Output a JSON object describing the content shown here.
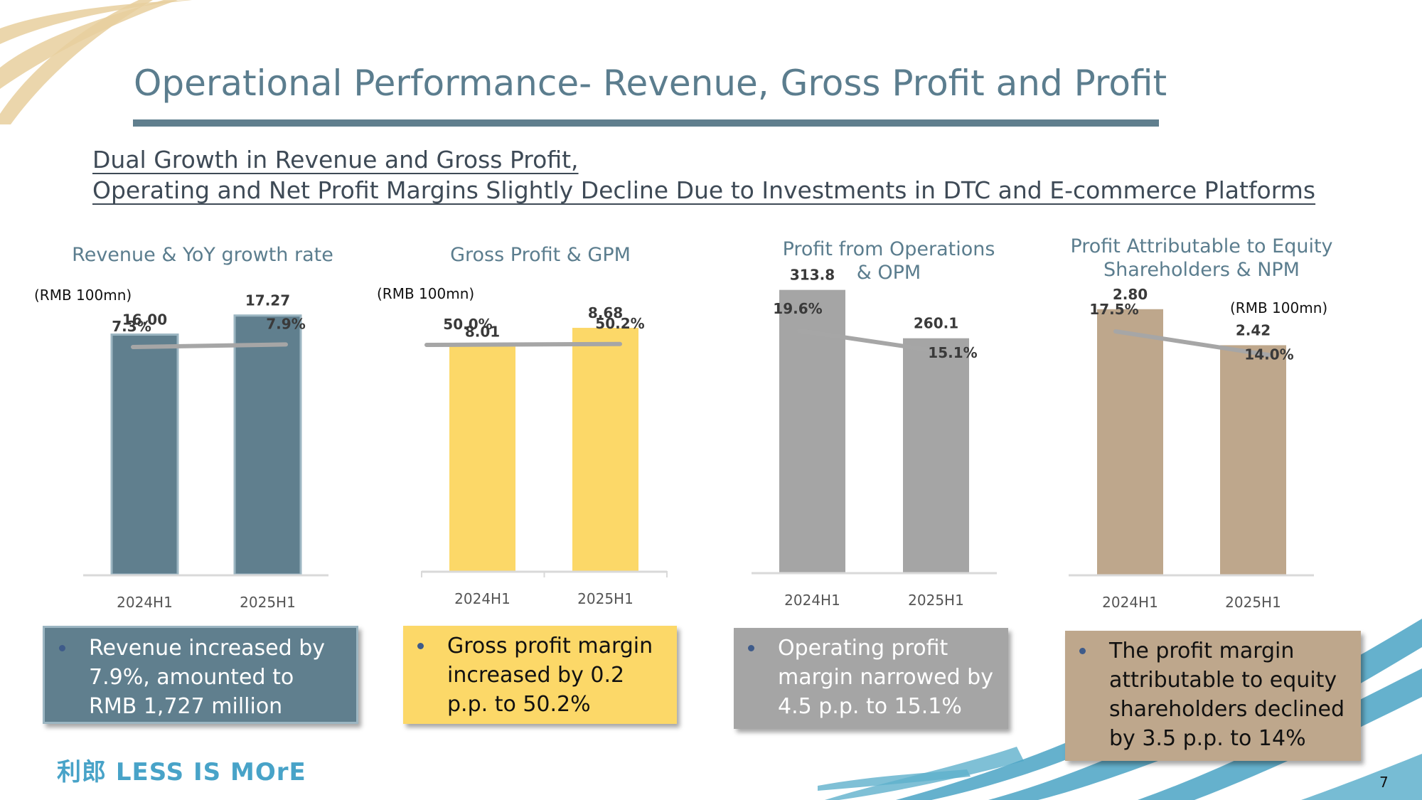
{
  "slide": {
    "title": "Operational Performance- Revenue, Gross Profit and Profit",
    "subtitle_line1": "Dual Growth in Revenue and Gross Profit,",
    "subtitle_line2": "Operating and Net Profit Margins Slightly Decline Due to Investments in DTC and E-commerce Platforms",
    "page_number": "7",
    "logo_text": "利郎 LESS IS MOrE"
  },
  "colors": {
    "title": "#5b7d8e",
    "revenue_bar": "#607f8e",
    "revenue_bar_border": "#9cb6c2",
    "gross_bar": "#fcd868",
    "operations_bar": "#a5a5a5",
    "net_bar": "#bea78c",
    "trend_line": "#a6a6a6",
    "axis": "#d9d9d9",
    "logo": "#48a3c8"
  },
  "notes": {
    "revenue": "Revenue increased by 7.9%, amounted to RMB 1,727 million",
    "gross": "Gross profit margin increased by 0.2 p.p. to 50.2%",
    "operations": "Operating profit margin narrowed by 4.5 p.p. to 15.1%",
    "net": "The profit margin attributable to equity shareholders declined by 3.5 p.p. to 14%"
  },
  "chart_data": [
    {
      "type": "bar",
      "id": "revenue",
      "title": "Revenue & YoY growth rate",
      "unit_label": "(RMB 100mn)",
      "categories": [
        "2024H1",
        "2025H1"
      ],
      "values": [
        16.0,
        17.27
      ],
      "value_labels": [
        "16.00",
        "17.27"
      ],
      "line_series": {
        "name": "YoY growth rate",
        "values": [
          7.3,
          7.9
        ],
        "labels": [
          "7.3%",
          "7.9%"
        ]
      },
      "xlabel": "",
      "ylabel": "",
      "grid": false
    },
    {
      "type": "bar",
      "id": "gross",
      "title": "Gross Profit & GPM",
      "unit_label": "(RMB 100mn)",
      "categories": [
        "2024H1",
        "2025H1"
      ],
      "values": [
        8.01,
        8.68
      ],
      "value_labels": [
        "8.01",
        "8.68"
      ],
      "line_series": {
        "name": "GPM",
        "values": [
          50.0,
          50.2
        ],
        "labels": [
          "50.0%",
          "50.2%"
        ]
      },
      "xlabel": "",
      "ylabel": "",
      "grid": false
    },
    {
      "type": "bar",
      "id": "operations",
      "title": "Profit from Operations & OPM",
      "title_line1": "Profit from Operations",
      "title_line2": "& OPM",
      "unit_label": "",
      "categories": [
        "2024H1",
        "2025H1"
      ],
      "values": [
        313.8,
        260.1
      ],
      "value_labels": [
        "313.8",
        "260.1"
      ],
      "line_series": {
        "name": "OPM",
        "values": [
          19.6,
          15.1
        ],
        "labels": [
          "19.6%",
          "15.1%"
        ]
      },
      "xlabel": "",
      "ylabel": "",
      "grid": false
    },
    {
      "type": "bar",
      "id": "net",
      "title": "Profit Attributable to Equity Shareholders & NPM",
      "title_line1": "Profit Attributable to Equity",
      "title_line2": "Shareholders & NPM",
      "unit_label": "(RMB 100mn)",
      "categories": [
        "2024H1",
        "2025H1"
      ],
      "values": [
        2.8,
        2.42
      ],
      "value_labels": [
        "2.80",
        "2.42"
      ],
      "line_series": {
        "name": "NPM",
        "values": [
          17.5,
          14.0
        ],
        "labels": [
          "17.5%",
          "14.0%"
        ]
      },
      "xlabel": "",
      "ylabel": "",
      "grid": false
    }
  ]
}
